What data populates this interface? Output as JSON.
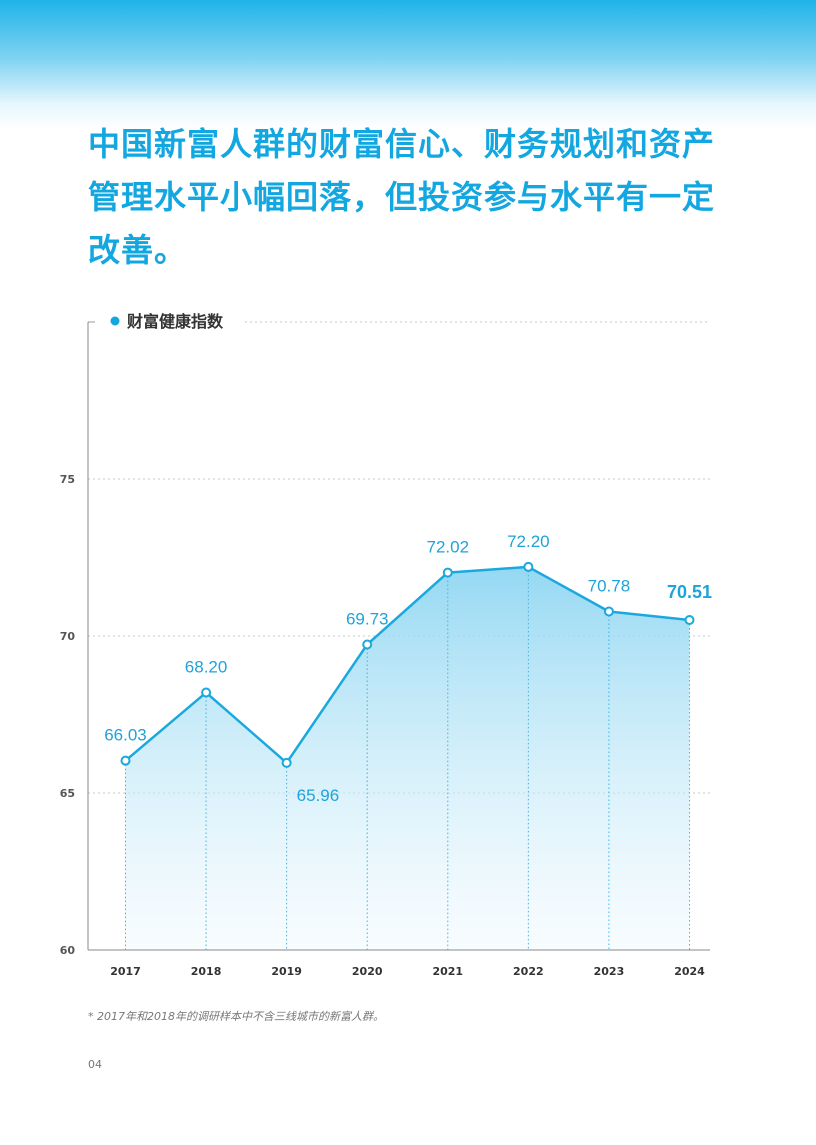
{
  "headline": "中国新富人群的财富信心、财务规划和资产管理水平小幅回落，但投资参与水平有一定改善。",
  "footnote": "* 2017年和2018年的调研样本中不含三线城市的新富人群。",
  "page_number": "04",
  "colors": {
    "accent": "#12a7e0",
    "line": "#1aa8de",
    "label": "#1fa3d8",
    "axis_text": "#555555"
  },
  "chart_data": {
    "type": "area",
    "legend": "财富健康指数",
    "legend_position": "top-left",
    "categories": [
      "2017",
      "2018",
      "2019",
      "2020",
      "2021",
      "2022",
      "2023",
      "2024"
    ],
    "values": [
      66.03,
      68.2,
      65.96,
      69.73,
      72.02,
      72.2,
      70.78,
      70.51
    ],
    "value_labels": [
      "66.03",
      "68.20",
      "65.96",
      "69.73",
      "72.02",
      "72.20",
      "70.78",
      "70.51"
    ],
    "highlight_index": 7,
    "ylim": [
      60,
      80
    ],
    "yticks": [
      60,
      65,
      70,
      75
    ],
    "grid": true
  }
}
